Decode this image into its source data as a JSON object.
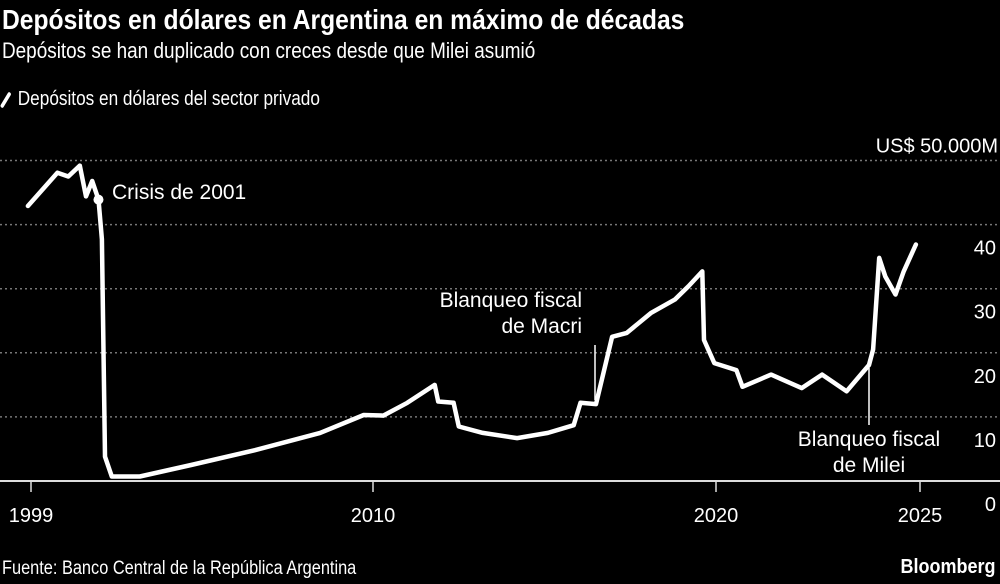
{
  "title": "Depósitos en dólares en Argentina en máximo de décadas",
  "subtitle": "Depósitos se han duplicado con creces desde que Milei asumió",
  "source": "Fuente: Banco Central de la República Argentina",
  "brand": "Bloomberg",
  "colors": {
    "background": "#000000",
    "line": "#ffffff",
    "grid": "#777777"
  },
  "chart_data": {
    "type": "line",
    "title": "Depósitos en dólares en Argentina en máximo de décadas",
    "ylabel": "",
    "xlabel": "",
    "y_unit_label": "US$ 50.000M",
    "ylim": [
      0,
      50
    ],
    "yticks": [
      0,
      10,
      20,
      30,
      40,
      50
    ],
    "ytick_labels": [
      "0",
      "10",
      "20",
      "30",
      "40",
      "US$ 50.000M"
    ],
    "xticks": [
      1999,
      2010,
      2020,
      2025
    ],
    "xtick_labels": [
      "1999",
      "2010",
      "2020",
      "2025"
    ],
    "grid": "horizontal dotted",
    "legend": "top-left",
    "series": [
      {
        "name": "Depósitos en dólares del sector privado",
        "x": [
          1998.9,
          1999.85,
          2000.2,
          2000.57,
          2000.77,
          2000.97,
          2001.17,
          2001.28,
          2001.38,
          2001.6,
          2002.5,
          2004.15,
          2006.2,
          2008.3,
          2009.7,
          2010.3,
          2011.0,
          2011.8,
          2011.9,
          2012.35,
          2012.5,
          2013.2,
          2014.2,
          2015.1,
          2015.85,
          2016.05,
          2016.5,
          2016.97,
          2017.4,
          2018.1,
          2018.8,
          2019.2,
          2019.6,
          2019.65,
          2019.95,
          2020.5,
          2020.65,
          2021.35,
          2022.1,
          2022.6,
          2023.2,
          2023.75,
          2023.85,
          2024.0,
          2024.15,
          2024.4,
          2024.6,
          2024.9
        ],
        "y": [
          42.9,
          48.1,
          47.5,
          49.2,
          44.4,
          46.8,
          43.9,
          37.7,
          3.8,
          0.7,
          0.7,
          2.5,
          4.8,
          7.5,
          10.3,
          10.2,
          12.2,
          15.0,
          12.4,
          12.2,
          8.5,
          7.5,
          6.7,
          7.5,
          8.7,
          12.2,
          12.0,
          22.5,
          23.1,
          26.2,
          28.3,
          30.4,
          32.7,
          22.0,
          18.4,
          17.3,
          14.7,
          16.6,
          14.5,
          16.6,
          14.0,
          18.1,
          20.5,
          34.8,
          31.9,
          29.1,
          32.7,
          36.9
        ]
      }
    ],
    "annotations": [
      {
        "text": "Crisis de 2001",
        "x": 2001.17,
        "y": 43.9
      },
      {
        "text": [
          "Blanqueo fiscal",
          "de Macri"
        ],
        "x": 2016.6,
        "y": 12.0
      },
      {
        "text": [
          "Blanqueo fiscal",
          "de Milei"
        ],
        "x": 2023.75,
        "y": 18.1
      }
    ]
  }
}
